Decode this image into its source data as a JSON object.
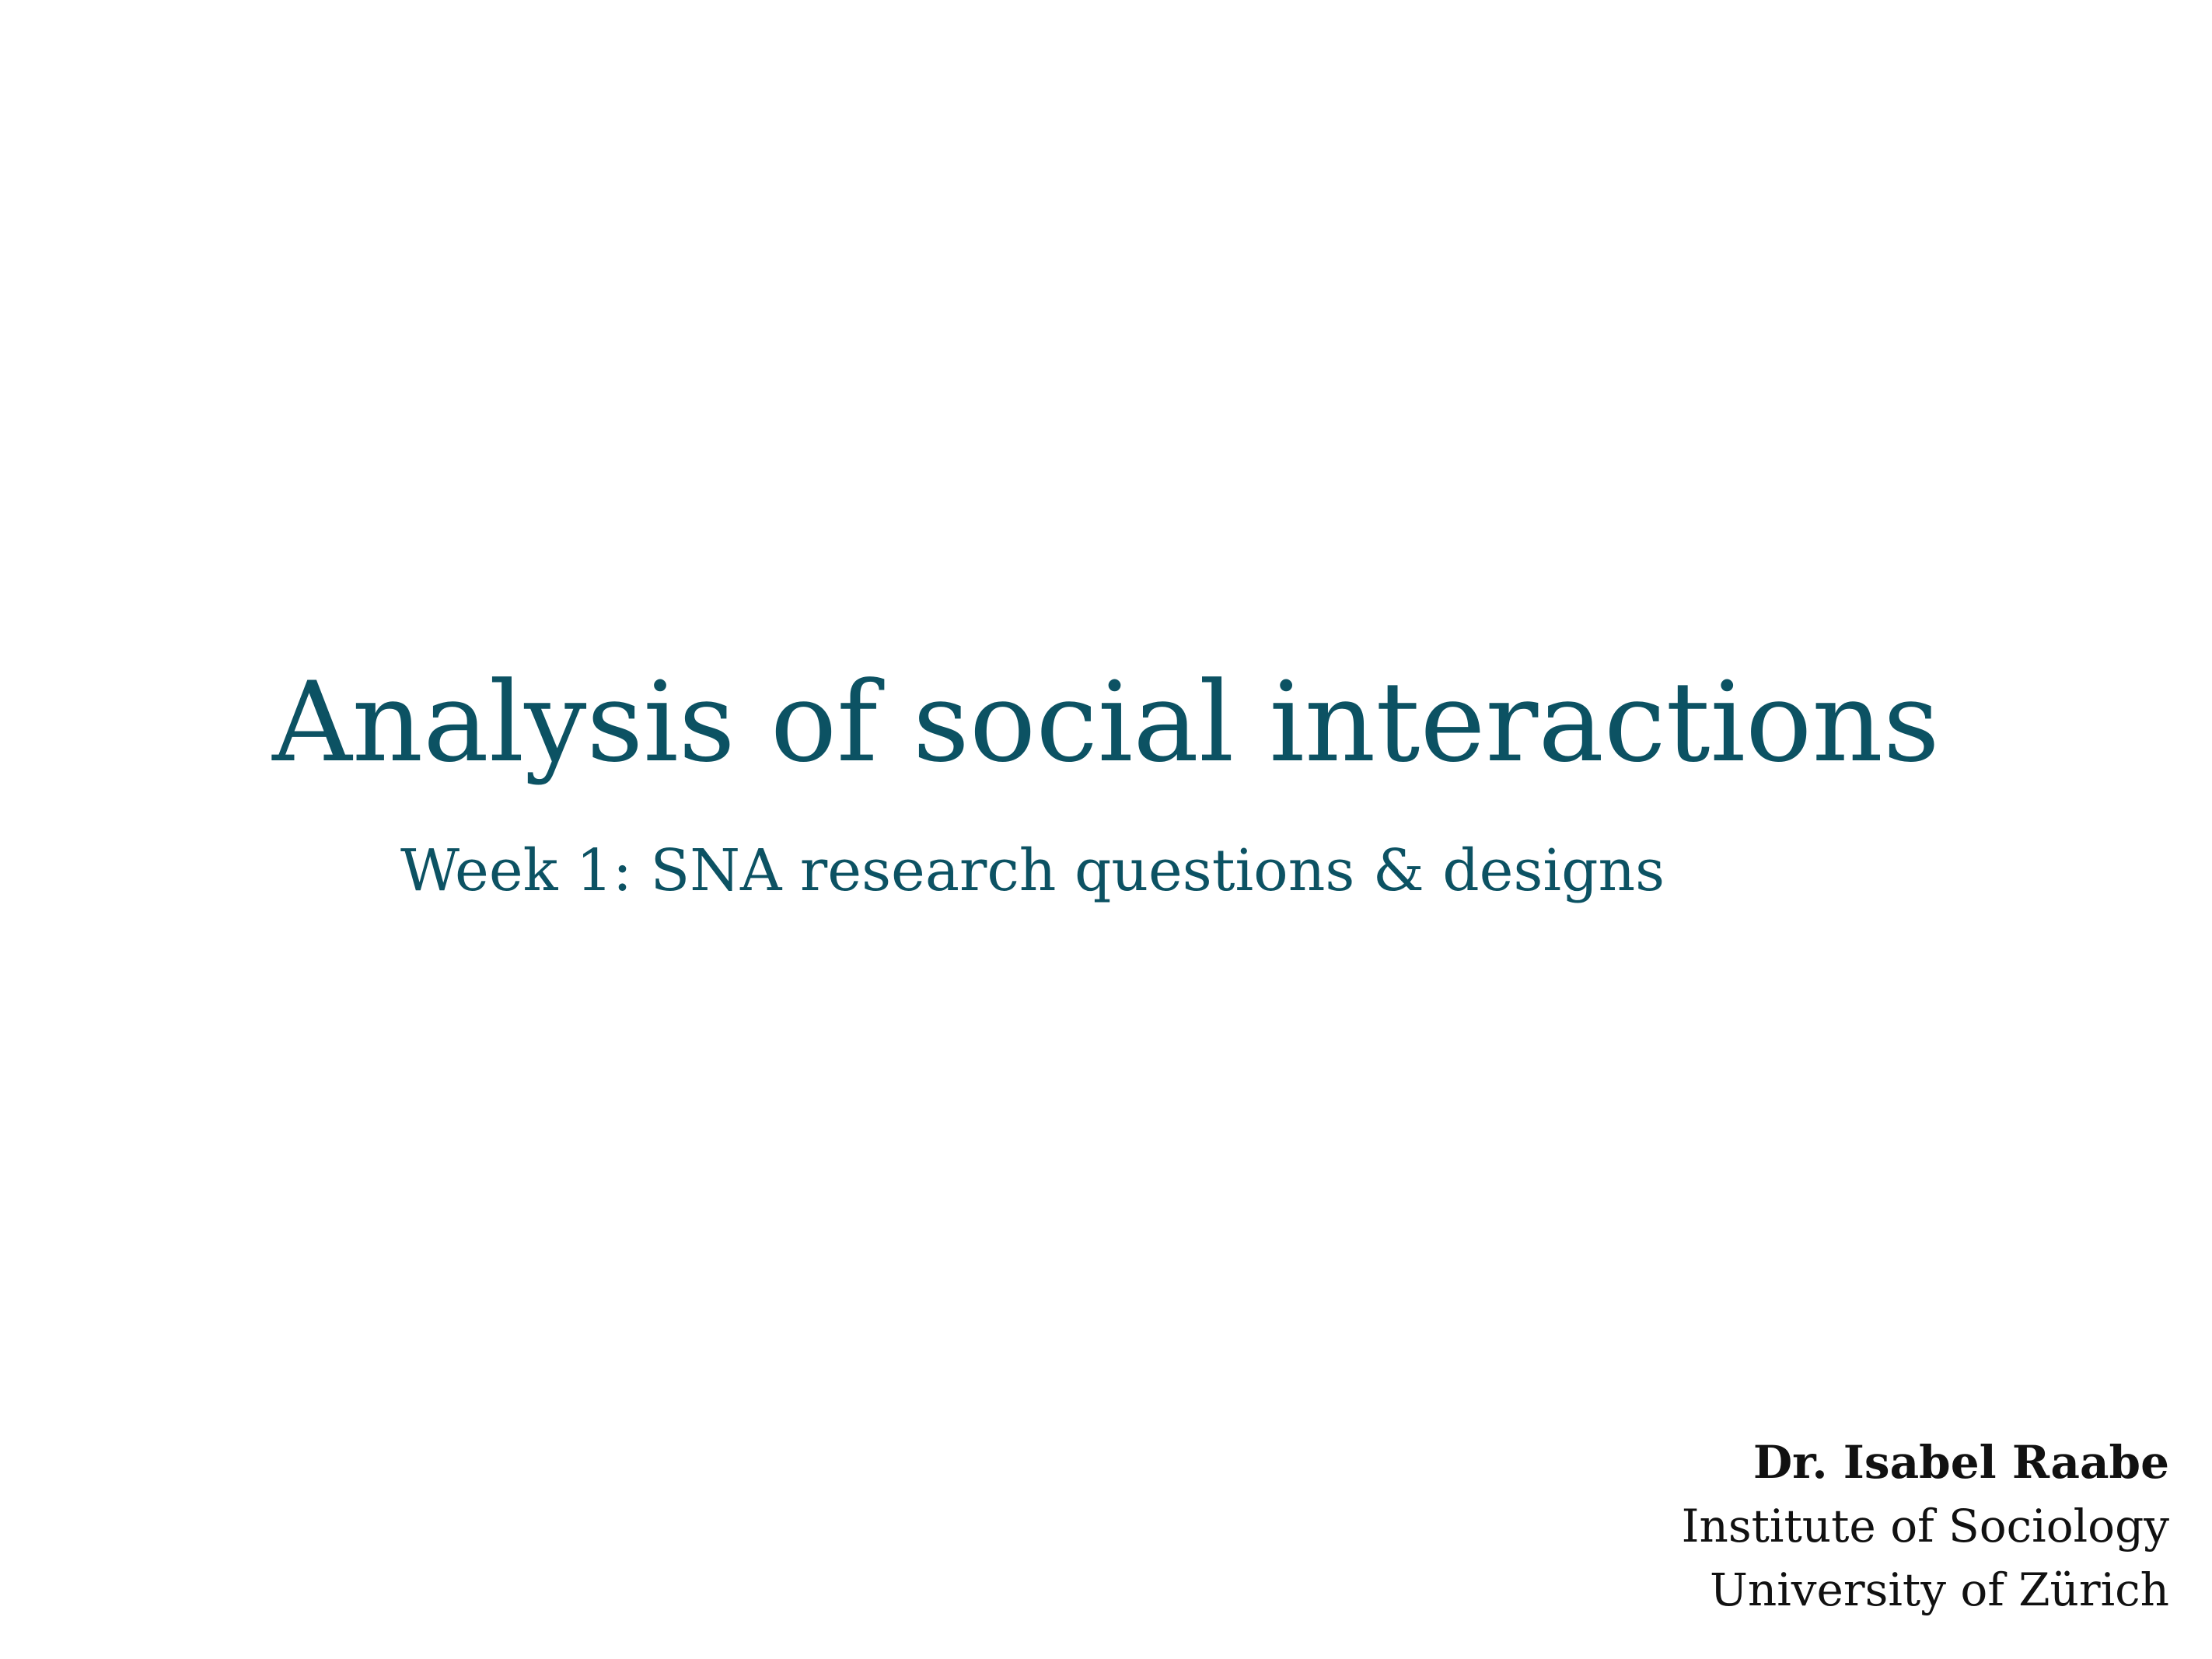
{
  "slide": {
    "title": "Analysis of social interactions",
    "subtitle": "Week 1: SNA research questions & designs",
    "author": {
      "name": "Dr. Isabel Raabe",
      "institute": "Institute of Sociology",
      "university": "University of Zürich"
    },
    "colors": {
      "title": "#0c5263",
      "author": "#111111",
      "background": "#ffffff"
    }
  }
}
